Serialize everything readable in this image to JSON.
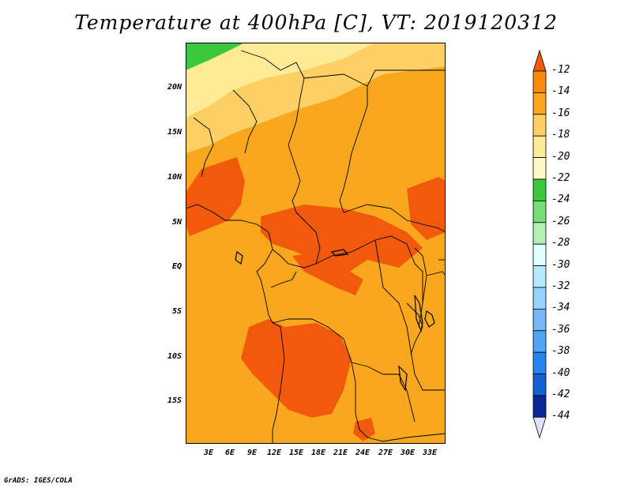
{
  "title": "Temperature at 400hPa [C], VT: 2019120312",
  "footer": "GrADS: IGES/COLA",
  "lat_labels": [
    "20N",
    "15N",
    "10N",
    "5N",
    "EQ",
    "5S",
    "10S",
    "15S"
  ],
  "lon_labels": [
    "3E",
    "6E",
    "9E",
    "12E",
    "15E",
    "18E",
    "21E",
    "24E",
    "27E",
    "30E",
    "33E"
  ],
  "colorbar": {
    "labels": [
      "-12",
      "-14",
      "-16",
      "-18",
      "-20",
      "-22",
      "-24",
      "-26",
      "-28",
      "-30",
      "-32",
      "-34",
      "-36",
      "-38",
      "-40",
      "-42",
      "-44"
    ],
    "colors": [
      "#f05a0a",
      "#f78c0a",
      "#f9a81e",
      "#fcd064",
      "#feeb96",
      "#fff8c8",
      "#3cc83c",
      "#78dc78",
      "#b4f0b4",
      "#e1ffff",
      "#b4eaff",
      "#96d2fa",
      "#78b9f5",
      "#50a5f5",
      "#2882f0",
      "#1460d2",
      "#0a2896"
    ],
    "top_arrow_color": "#f05a0a",
    "bottom_arrow_color": "#e1e1ff"
  },
  "map": {
    "background_color": "#f9a81e",
    "warm_color": "#f05a0a",
    "cool_colors": [
      "#fcd064",
      "#feeb96",
      "#3cc83c"
    ]
  }
}
